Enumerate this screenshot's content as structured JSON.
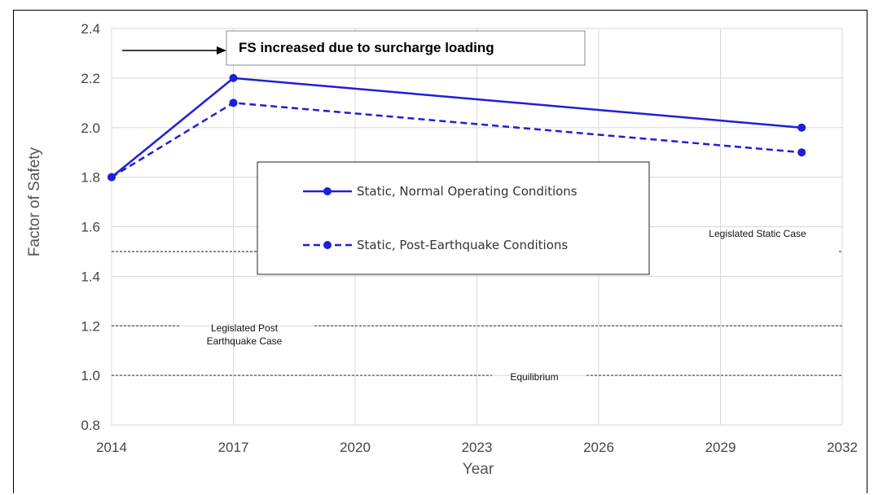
{
  "chart_data": {
    "type": "line",
    "xlabel": "Year",
    "ylabel": "Factor of Safety",
    "xlim": [
      2014,
      2032
    ],
    "ylim": [
      0.8,
      2.4
    ],
    "xticks": [
      "2014",
      "2017",
      "2020",
      "2023",
      "2026",
      "2029",
      "2032"
    ],
    "yticks": [
      "0.8",
      "1.0",
      "1.2",
      "1.4",
      "1.6",
      "1.8",
      "2.0",
      "2.2",
      "2.4"
    ],
    "grid": true,
    "legend_position": "center",
    "series": [
      {
        "name": "Static, Normal Operating Conditions",
        "style": "solid",
        "color": "#1f1fd6",
        "points": [
          {
            "x": 2014,
            "y": 1.8
          },
          {
            "x": 2017,
            "y": 2.2
          },
          {
            "x": 2031,
            "y": 2.0
          }
        ]
      },
      {
        "name": "Static, Post-Earthquake Conditions",
        "style": "dashed",
        "color": "#1f1fd6",
        "points": [
          {
            "x": 2014,
            "y": 1.8
          },
          {
            "x": 2017,
            "y": 2.1
          },
          {
            "x": 2031,
            "y": 1.9
          }
        ]
      }
    ],
    "reference_lines": [
      {
        "y": 1.5,
        "label": "Legislated Static Case"
      },
      {
        "y": 1.2,
        "label_lines": [
          "Legislated Post",
          "Earthquake Case"
        ]
      },
      {
        "y": 1.0,
        "label": "Equilibrium"
      }
    ],
    "annotation": {
      "text": "FS increased due to surcharge loading"
    }
  }
}
